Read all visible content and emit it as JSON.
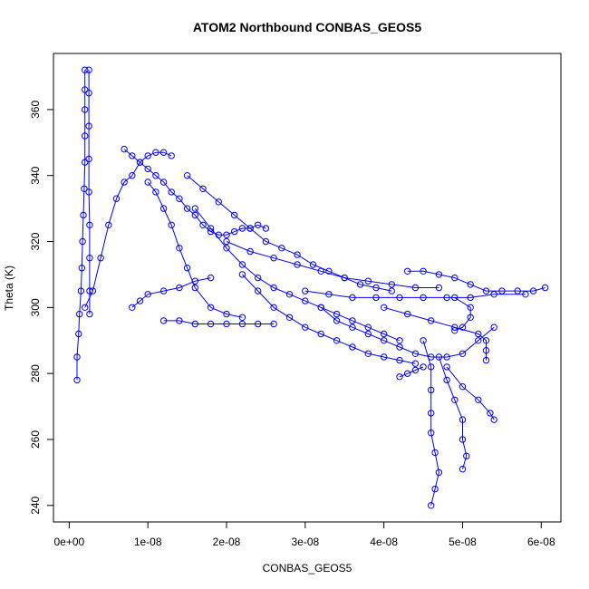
{
  "chart_data": {
    "type": "scatter",
    "title": "ATOM2 Northbound CONBAS_GEOS5",
    "xlabel": "CONBAS_GEOS5",
    "ylabel": "Theta (K)",
    "xlim": [
      -2e-09,
      6.25e-08
    ],
    "ylim": [
      235,
      377
    ],
    "x_ticks": [
      0,
      1e-08,
      2e-08,
      3e-08,
      4e-08,
      5e-08,
      6e-08
    ],
    "x_tick_labels": [
      "0e+00",
      "1e-08",
      "2e-08",
      "3e-08",
      "4e-08",
      "5e-08",
      "6e-08"
    ],
    "y_ticks": [
      240,
      260,
      280,
      300,
      320,
      340,
      360
    ],
    "y_tick_labels": [
      "240",
      "260",
      "280",
      "300",
      "320",
      "340",
      "360"
    ],
    "grid": false,
    "marker": "open-circle",
    "color": "#0000ff",
    "series": [
      {
        "points": [
          [
            1e-09,
            278
          ],
          [
            1e-09,
            285
          ],
          [
            1.2e-09,
            292
          ],
          [
            1.3e-09,
            298
          ],
          [
            1.5e-09,
            305
          ],
          [
            1.6e-09,
            312
          ],
          [
            1.7e-09,
            320
          ],
          [
            1.8e-09,
            328
          ],
          [
            1.9e-09,
            336
          ],
          [
            2e-09,
            344
          ],
          [
            2e-09,
            352
          ],
          [
            2e-09,
            360
          ],
          [
            2e-09,
            366
          ],
          [
            2e-09,
            372
          ]
        ]
      },
      {
        "points": [
          [
            2.5e-09,
            372
          ],
          [
            2.5e-09,
            365
          ],
          [
            2.5e-09,
            355
          ],
          [
            2.5e-09,
            345
          ],
          [
            2.5e-09,
            335
          ],
          [
            2.6e-09,
            325
          ],
          [
            2.6e-09,
            315
          ],
          [
            2.6e-09,
            305
          ],
          [
            2.6e-09,
            298
          ]
        ]
      },
      {
        "points": [
          [
            2e-09,
            300
          ],
          [
            3e-09,
            305
          ],
          [
            4e-09,
            315
          ],
          [
            5e-09,
            325
          ],
          [
            6e-09,
            333
          ],
          [
            7e-09,
            338
          ],
          [
            8e-09,
            340
          ],
          [
            9e-09,
            344
          ],
          [
            1e-08,
            346
          ],
          [
            1.1e-08,
            347
          ],
          [
            1.2e-08,
            347
          ],
          [
            1.3e-08,
            346
          ]
        ]
      },
      {
        "points": [
          [
            7e-09,
            348
          ],
          [
            8e-09,
            346
          ],
          [
            9e-09,
            344
          ],
          [
            1e-08,
            342
          ],
          [
            1.1e-08,
            340
          ],
          [
            1.2e-08,
            338
          ],
          [
            1.3e-08,
            335
          ],
          [
            1.4e-08,
            333
          ],
          [
            1.5e-08,
            330
          ],
          [
            1.6e-08,
            328
          ],
          [
            1.7e-08,
            325
          ],
          [
            1.8e-08,
            323
          ],
          [
            1.9e-08,
            322
          ],
          [
            2e-08,
            322
          ],
          [
            2.1e-08,
            323
          ],
          [
            2.2e-08,
            324
          ],
          [
            2.3e-08,
            324
          ],
          [
            2.4e-08,
            325
          ],
          [
            2.5e-08,
            324
          ]
        ]
      },
      {
        "points": [
          [
            1e-08,
            338
          ],
          [
            1.1e-08,
            335
          ],
          [
            1.2e-08,
            330
          ],
          [
            1.3e-08,
            325
          ],
          [
            1.4e-08,
            318
          ],
          [
            1.5e-08,
            312
          ],
          [
            1.6e-08,
            306
          ],
          [
            1.8e-08,
            300
          ],
          [
            2e-08,
            298
          ],
          [
            2.2e-08,
            297
          ]
        ]
      },
      {
        "points": [
          [
            8e-09,
            300
          ],
          [
            9e-09,
            302
          ],
          [
            1e-08,
            304
          ],
          [
            1.2e-08,
            305
          ],
          [
            1.4e-08,
            306
          ],
          [
            1.6e-08,
            308
          ],
          [
            1.8e-08,
            309
          ]
        ]
      },
      {
        "points": [
          [
            1.2e-08,
            296
          ],
          [
            1.4e-08,
            296
          ],
          [
            1.6e-08,
            295
          ],
          [
            1.8e-08,
            295
          ],
          [
            2e-08,
            295
          ],
          [
            2.2e-08,
            295
          ],
          [
            2.4e-08,
            295
          ],
          [
            2.6e-08,
            295
          ]
        ]
      },
      {
        "points": [
          [
            1.5e-08,
            340
          ],
          [
            1.7e-08,
            336
          ],
          [
            1.9e-08,
            332
          ],
          [
            2.1e-08,
            328
          ],
          [
            2.3e-08,
            324
          ],
          [
            2.5e-08,
            320
          ],
          [
            2.7e-08,
            318
          ],
          [
            2.9e-08,
            316
          ],
          [
            3.1e-08,
            313
          ],
          [
            3.3e-08,
            311
          ],
          [
            3.5e-08,
            309
          ],
          [
            3.7e-08,
            307
          ],
          [
            3.9e-08,
            306
          ],
          [
            4.1e-08,
            305
          ]
        ]
      },
      {
        "points": [
          [
            1.6e-08,
            330
          ],
          [
            1.8e-08,
            324
          ],
          [
            2e-08,
            318
          ],
          [
            2.2e-08,
            313
          ],
          [
            2.4e-08,
            309
          ],
          [
            2.6e-08,
            306
          ],
          [
            2.8e-08,
            304
          ],
          [
            3e-08,
            302
          ],
          [
            3.2e-08,
            300
          ],
          [
            3.4e-08,
            298
          ],
          [
            3.6e-08,
            296
          ],
          [
            3.8e-08,
            294
          ],
          [
            4e-08,
            292
          ],
          [
            4.2e-08,
            290
          ]
        ]
      },
      {
        "points": [
          [
            2.2e-08,
            310
          ],
          [
            2.4e-08,
            305
          ],
          [
            2.6e-08,
            300
          ],
          [
            2.8e-08,
            297
          ],
          [
            3e-08,
            294
          ],
          [
            3.2e-08,
            292
          ],
          [
            3.4e-08,
            290
          ],
          [
            3.6e-08,
            288
          ],
          [
            3.8e-08,
            286
          ],
          [
            4e-08,
            285
          ],
          [
            4.2e-08,
            284
          ],
          [
            4.4e-08,
            283
          ]
        ]
      },
      {
        "points": [
          [
            4.3e-08,
            311
          ],
          [
            4.5e-08,
            311
          ],
          [
            4.7e-08,
            310
          ],
          [
            4.9e-08,
            309
          ],
          [
            5.1e-08,
            307
          ],
          [
            5.3e-08,
            305
          ],
          [
            5.5e-08,
            305
          ],
          [
            5.7e-08,
            305
          ],
          [
            5.9e-08,
            305
          ],
          [
            6.05e-08,
            306
          ]
        ]
      },
      {
        "points": [
          [
            3e-08,
            305
          ],
          [
            3.3e-08,
            304
          ],
          [
            3.6e-08,
            303
          ],
          [
            3.9e-08,
            303
          ],
          [
            4.2e-08,
            303
          ],
          [
            4.5e-08,
            303
          ],
          [
            4.8e-08,
            303
          ],
          [
            5.1e-08,
            303
          ],
          [
            5.4e-08,
            304
          ],
          [
            5.8e-08,
            304
          ]
        ]
      },
      {
        "points": [
          [
            4e-08,
            300
          ],
          [
            4.3e-08,
            298
          ],
          [
            4.6e-08,
            296
          ],
          [
            4.9e-08,
            294
          ],
          [
            5.2e-08,
            292
          ],
          [
            5.3e-08,
            290
          ],
          [
            5.3e-08,
            287
          ],
          [
            5.3e-08,
            284
          ]
        ]
      },
      {
        "points": [
          [
            4.5e-08,
            290
          ],
          [
            4.6e-08,
            282
          ],
          [
            4.6e-08,
            275
          ],
          [
            4.6e-08,
            268
          ],
          [
            4.6e-08,
            262
          ],
          [
            4.65e-08,
            256
          ],
          [
            4.7e-08,
            250
          ],
          [
            4.65e-08,
            245
          ],
          [
            4.6e-08,
            240
          ]
        ]
      },
      {
        "points": [
          [
            4.7e-08,
            285
          ],
          [
            4.8e-08,
            278
          ],
          [
            4.9e-08,
            272
          ],
          [
            5e-08,
            266
          ],
          [
            5e-08,
            260
          ],
          [
            5.05e-08,
            255
          ],
          [
            5e-08,
            251
          ]
        ]
      },
      {
        "points": [
          [
            4.8e-08,
            282
          ],
          [
            5e-08,
            276
          ],
          [
            5.2e-08,
            272
          ],
          [
            5.35e-08,
            268
          ],
          [
            5.4e-08,
            266
          ]
        ]
      },
      {
        "points": [
          [
            4.2e-08,
            279
          ],
          [
            4.3e-08,
            280
          ],
          [
            4.4e-08,
            281
          ],
          [
            4.5e-08,
            282
          ]
        ]
      },
      {
        "points": [
          [
            3.2e-08,
            300
          ],
          [
            3.4e-08,
            296
          ],
          [
            3.6e-08,
            294
          ],
          [
            3.8e-08,
            292
          ],
          [
            4e-08,
            290
          ],
          [
            4.2e-08,
            288
          ],
          [
            4.4e-08,
            286
          ],
          [
            4.6e-08,
            285
          ],
          [
            4.8e-08,
            285
          ],
          [
            5e-08,
            286
          ],
          [
            5.2e-08,
            290
          ],
          [
            5.4e-08,
            294
          ]
        ]
      },
      {
        "points": [
          [
            4.9e-08,
            303
          ],
          [
            5.1e-08,
            300
          ],
          [
            5.1e-08,
            297
          ],
          [
            5e-08,
            294
          ],
          [
            4.9e-08,
            293
          ]
        ]
      },
      {
        "points": [
          [
            2e-08,
            320
          ],
          [
            2.3e-08,
            317
          ],
          [
            2.6e-08,
            315
          ],
          [
            2.9e-08,
            313
          ],
          [
            3.2e-08,
            311
          ],
          [
            3.5e-08,
            309
          ],
          [
            3.8e-08,
            308
          ],
          [
            4.1e-08,
            307
          ],
          [
            4.4e-08,
            306
          ],
          [
            4.7e-08,
            306
          ]
        ]
      }
    ]
  }
}
